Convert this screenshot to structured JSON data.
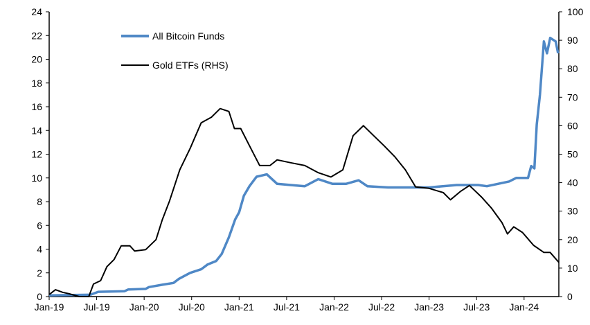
{
  "chart_data": {
    "type": "line",
    "title": "",
    "xlabel": "",
    "ylabel": "",
    "y2label": "",
    "grid": false,
    "legend_position": "top-left",
    "x_ticks": [
      "Jan-19",
      "Jul-19",
      "Jan-20",
      "Jul-20",
      "Jan-21",
      "Jul-21",
      "Jan-22",
      "Jul-22",
      "Jan-23",
      "Jul-23",
      "Jan-24"
    ],
    "x_range": [
      "2019-01-01",
      "2024-05-13"
    ],
    "ylim": [
      0,
      24
    ],
    "y_ticks": [
      0,
      2,
      4,
      6,
      8,
      10,
      12,
      14,
      16,
      18,
      20,
      22,
      24
    ],
    "y2lim": [
      0,
      100
    ],
    "y2_ticks": [
      0,
      10,
      20,
      30,
      40,
      50,
      60,
      70,
      80,
      90,
      100
    ],
    "series": [
      {
        "name": "All Bitcoin Funds",
        "axis": "left",
        "color": "#4F88C6",
        "points": [
          [
            "2019-01-01",
            0.1
          ],
          [
            "2019-06-07",
            0.15
          ],
          [
            "2019-07-07",
            0.4
          ],
          [
            "2019-10-16",
            0.45
          ],
          [
            "2019-11-01",
            0.6
          ],
          [
            "2020-01-07",
            0.65
          ],
          [
            "2020-01-19",
            0.8
          ],
          [
            "2020-03-10",
            1.0
          ],
          [
            "2020-04-22",
            1.15
          ],
          [
            "2020-05-13",
            1.5
          ],
          [
            "2020-06-25",
            2.0
          ],
          [
            "2020-08-07",
            2.3
          ],
          [
            "2020-09-01",
            2.7
          ],
          [
            "2020-10-04",
            3.0
          ],
          [
            "2020-10-25",
            3.6
          ],
          [
            "2020-11-22",
            5.0
          ],
          [
            "2020-12-16",
            6.5
          ],
          [
            "2021-01-01",
            7.1
          ],
          [
            "2021-01-19",
            8.5
          ],
          [
            "2021-02-10",
            9.3
          ],
          [
            "2021-03-07",
            10.1
          ],
          [
            "2021-04-16",
            10.3
          ],
          [
            "2021-05-25",
            9.5
          ],
          [
            "2021-07-16",
            9.4
          ],
          [
            "2021-09-10",
            9.3
          ],
          [
            "2021-11-01",
            9.9
          ],
          [
            "2021-12-25",
            9.5
          ],
          [
            "2022-02-16",
            9.5
          ],
          [
            "2022-04-04",
            9.8
          ],
          [
            "2022-05-07",
            9.3
          ],
          [
            "2022-07-25",
            9.2
          ],
          [
            "2023-01-01",
            9.2
          ],
          [
            "2023-04-16",
            9.4
          ],
          [
            "2023-07-07",
            9.4
          ],
          [
            "2023-08-10",
            9.3
          ],
          [
            "2023-11-04",
            9.7
          ],
          [
            "2023-12-01",
            10.0
          ],
          [
            "2024-01-16",
            10.0
          ],
          [
            "2024-01-28",
            11.0
          ],
          [
            "2024-02-10",
            10.8
          ],
          [
            "2024-02-19",
            14.5
          ],
          [
            "2024-03-01",
            17.0
          ],
          [
            "2024-03-16",
            21.5
          ],
          [
            "2024-03-28",
            20.5
          ],
          [
            "2024-04-10",
            21.8
          ],
          [
            "2024-05-01",
            21.5
          ],
          [
            "2024-05-10",
            20.5
          ]
        ]
      },
      {
        "name": "Gold ETFs (RHS)",
        "axis": "right",
        "color": "#000000",
        "points": [
          [
            "2019-01-01",
            0.7
          ],
          [
            "2019-01-25",
            2.4
          ],
          [
            "2019-02-22",
            1.5
          ],
          [
            "2019-03-16",
            1.0
          ],
          [
            "2019-04-25",
            0
          ],
          [
            "2019-06-01",
            0
          ],
          [
            "2019-06-19",
            4.4
          ],
          [
            "2019-07-16",
            5.6
          ],
          [
            "2019-08-10",
            10.5
          ],
          [
            "2019-09-07",
            13
          ],
          [
            "2019-10-04",
            17.8
          ],
          [
            "2019-11-07",
            17.8
          ],
          [
            "2019-11-25",
            16
          ],
          [
            "2020-01-07",
            16.5
          ],
          [
            "2020-02-16",
            20
          ],
          [
            "2020-03-10",
            27
          ],
          [
            "2020-04-07",
            33.5
          ],
          [
            "2020-05-16",
            44.5
          ],
          [
            "2020-06-25",
            52
          ],
          [
            "2020-08-07",
            61
          ],
          [
            "2020-09-16",
            63
          ],
          [
            "2020-10-19",
            66
          ],
          [
            "2020-11-22",
            65
          ],
          [
            "2020-12-13",
            59
          ],
          [
            "2021-01-07",
            59
          ],
          [
            "2021-02-10",
            53
          ],
          [
            "2021-03-19",
            46
          ],
          [
            "2021-04-28",
            46
          ],
          [
            "2021-05-25",
            48
          ],
          [
            "2021-07-16",
            47
          ],
          [
            "2021-09-10",
            46
          ],
          [
            "2021-11-01",
            43.5
          ],
          [
            "2021-12-19",
            42
          ],
          [
            "2022-02-04",
            44.5
          ],
          [
            "2022-03-13",
            56.5
          ],
          [
            "2022-04-22",
            60
          ],
          [
            "2022-06-01",
            56.5
          ],
          [
            "2022-07-10",
            53
          ],
          [
            "2022-08-22",
            49
          ],
          [
            "2022-10-01",
            44.5
          ],
          [
            "2022-11-10",
            38.5
          ],
          [
            "2023-01-01",
            38
          ],
          [
            "2023-02-25",
            36.5
          ],
          [
            "2023-03-22",
            34
          ],
          [
            "2023-05-01",
            37
          ],
          [
            "2023-06-04",
            39
          ],
          [
            "2023-07-19",
            35
          ],
          [
            "2023-08-28",
            31
          ],
          [
            "2023-10-07",
            26
          ],
          [
            "2023-10-28",
            22
          ],
          [
            "2023-11-22",
            24.5
          ],
          [
            "2023-12-25",
            22.5
          ],
          [
            "2024-02-07",
            18
          ],
          [
            "2024-03-16",
            15.5
          ],
          [
            "2024-04-10",
            15.5
          ],
          [
            "2024-05-13",
            12
          ]
        ]
      }
    ]
  }
}
